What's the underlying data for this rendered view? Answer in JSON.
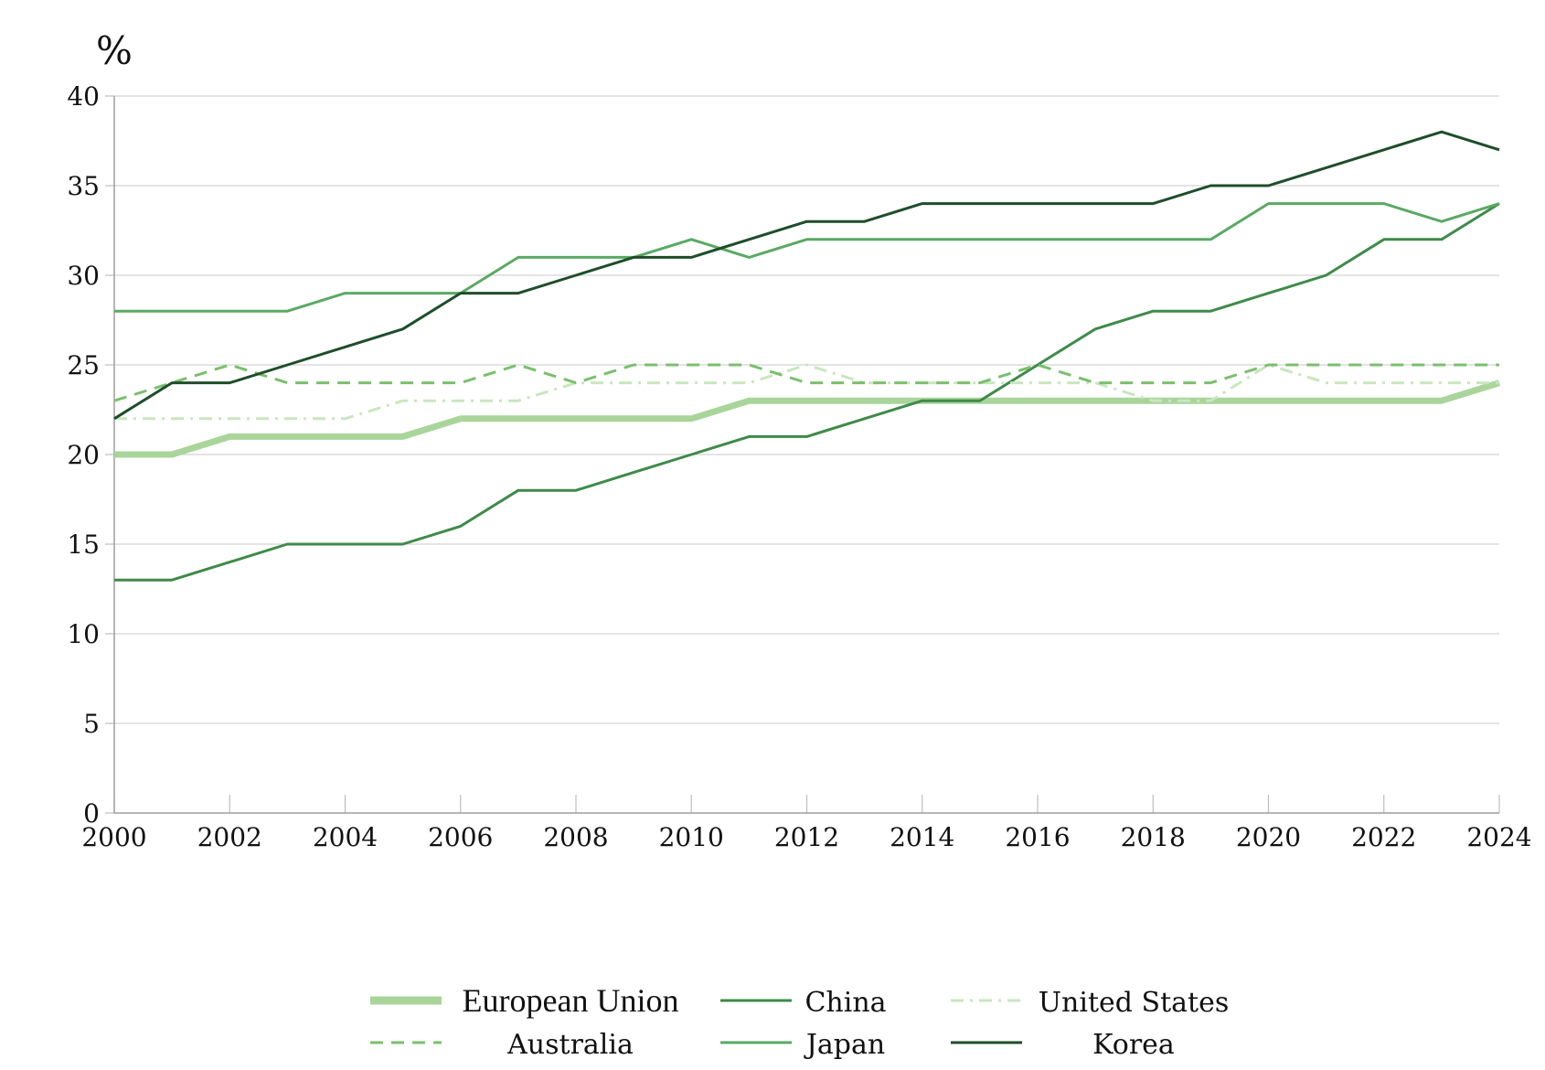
{
  "chart_data": {
    "type": "line",
    "ylabel": "%",
    "xlim": [
      2000,
      2024
    ],
    "ylim": [
      0,
      40
    ],
    "x_ticks": [
      "2000",
      "2002",
      "2004",
      "2006",
      "2008",
      "2010",
      "2012",
      "2014",
      "2016",
      "2018",
      "2020",
      "2022",
      "2024"
    ],
    "y_ticks": [
      "0",
      "5",
      "10",
      "15",
      "20",
      "25",
      "30",
      "35",
      "40"
    ],
    "grid": true,
    "legend_position": "bottom",
    "x": [
      2000,
      2001,
      2002,
      2003,
      2004,
      2005,
      2006,
      2007,
      2008,
      2009,
      2010,
      2011,
      2012,
      2013,
      2014,
      2015,
      2016,
      2017,
      2018,
      2019,
      2020,
      2021,
      2022,
      2023,
      2024
    ],
    "series": [
      {
        "name": "European Union",
        "color": "#a9d59a",
        "style": "thick",
        "values": [
          20,
          20,
          21,
          21,
          21,
          21,
          22,
          22,
          22,
          22,
          22,
          23,
          23,
          23,
          23,
          23,
          23,
          23,
          23,
          23,
          23,
          23,
          23,
          23,
          24
        ]
      },
      {
        "name": "China",
        "color": "#3f8a4a",
        "style": "solid",
        "values": [
          13,
          13,
          14,
          15,
          15,
          15,
          16,
          18,
          18,
          19,
          20,
          21,
          21,
          22,
          23,
          23,
          25,
          27,
          28,
          28,
          29,
          30,
          32,
          32,
          34
        ]
      },
      {
        "name": "United States",
        "color": "#c9e6bf",
        "style": "dashdot",
        "values": [
          22,
          22,
          22,
          22,
          22,
          23,
          23,
          23,
          24,
          24,
          24,
          24,
          25,
          24,
          24,
          24,
          24,
          24,
          23,
          23,
          25,
          24,
          24,
          24,
          24
        ]
      },
      {
        "name": "Australia",
        "color": "#7bbf6e",
        "style": "dashed",
        "values": [
          23,
          24,
          25,
          24,
          24,
          24,
          24,
          25,
          24,
          25,
          25,
          25,
          24,
          24,
          24,
          24,
          25,
          24,
          24,
          24,
          25,
          25,
          25,
          25,
          25
        ]
      },
      {
        "name": "Japan",
        "color": "#5aa965",
        "style": "solid",
        "values": [
          28,
          28,
          28,
          28,
          29,
          29,
          29,
          31,
          31,
          31,
          32,
          31,
          32,
          32,
          32,
          32,
          32,
          32,
          32,
          32,
          34,
          34,
          34,
          33,
          34
        ]
      },
      {
        "name": "Korea",
        "color": "#1f4d2a",
        "style": "solid",
        "values": [
          22,
          24,
          24,
          25,
          26,
          27,
          29,
          29,
          30,
          31,
          31,
          32,
          33,
          33,
          34,
          34,
          34,
          34,
          34,
          35,
          35,
          36,
          37,
          38,
          37
        ]
      }
    ]
  }
}
